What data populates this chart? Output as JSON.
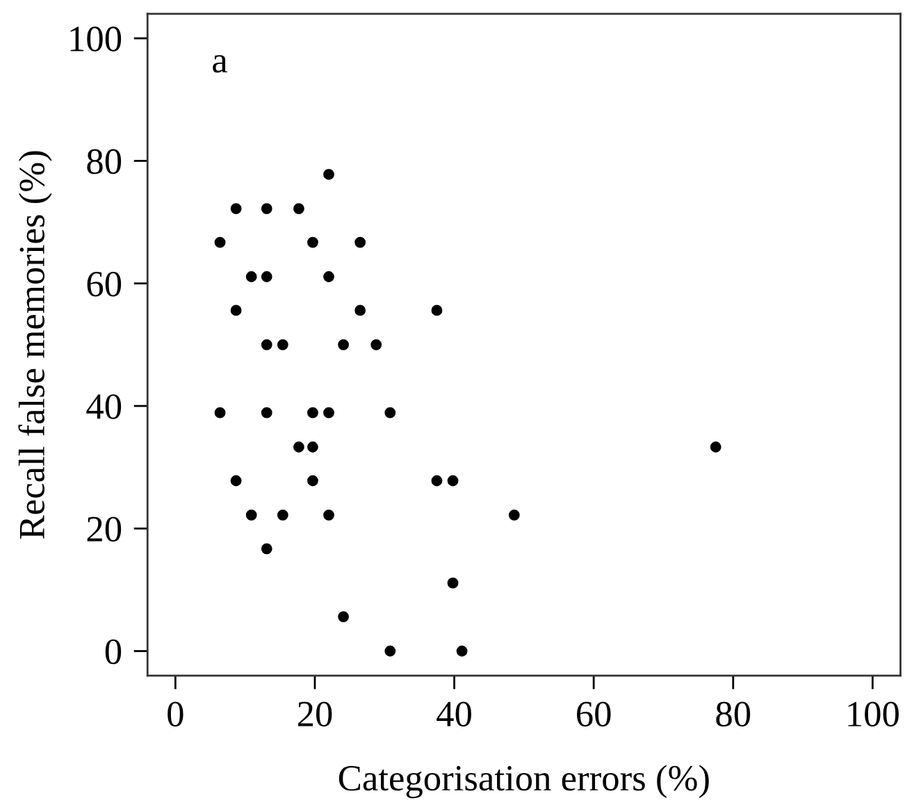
{
  "chart_data": {
    "type": "scatter",
    "xlabel": "Categorisation errors (%)",
    "ylabel": "Recall false memories (%)",
    "annotations": [
      "a"
    ],
    "series": [
      {
        "color": "#000000",
        "x": [
          22.0,
          8.7,
          13.1,
          17.7,
          6.4,
          19.7,
          26.5,
          10.9,
          13.1,
          22.0,
          8.7,
          26.5,
          37.5,
          13.1,
          15.4,
          24.1,
          28.8,
          6.4,
          13.1,
          19.7,
          22.0,
          30.8,
          17.7,
          19.7,
          77.5,
          8.7,
          19.7,
          37.5,
          39.8,
          10.9,
          15.4,
          22.0,
          48.6,
          13.1,
          39.8,
          24.1,
          30.8,
          41.1
        ],
        "values": [
          77.8,
          72.2,
          72.2,
          72.2,
          66.7,
          66.7,
          66.7,
          61.1,
          61.1,
          61.1,
          55.6,
          55.6,
          55.6,
          50.0,
          50.0,
          50.0,
          50.0,
          38.9,
          38.9,
          38.9,
          38.9,
          38.9,
          33.3,
          33.3,
          33.3,
          27.8,
          27.8,
          27.8,
          27.8,
          22.2,
          22.2,
          22.2,
          22.2,
          16.7,
          11.1,
          5.6,
          0.0,
          0.0
        ]
      }
    ],
    "marker": "circle",
    "xlim": [
      -4,
      104
    ],
    "ylim": [
      -4,
      104
    ],
    "xticks": [
      0,
      20,
      40,
      60,
      80,
      100
    ],
    "yticks": [
      0,
      20,
      40,
      60,
      80,
      100
    ],
    "grid": false,
    "legend": false
  }
}
